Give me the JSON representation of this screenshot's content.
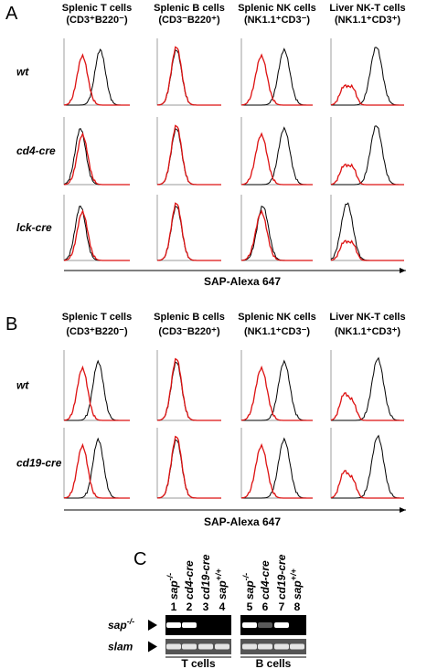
{
  "panels": [
    {
      "label": "A",
      "columns": [
        {
          "name": "Splenic T cells",
          "markers": "(CD3⁺B220⁻)"
        },
        {
          "name": "Splenic B cells",
          "markers": "(CD3⁻B220⁺)"
        },
        {
          "name": "Splenic NK cells",
          "markers": "(NK1.1⁺CD3⁻)"
        },
        {
          "name": "Liver NK-T cells",
          "markers": "(NK1.1⁺CD3⁺)"
        }
      ],
      "rows": [
        "wt",
        "cd4-cre",
        "lck-cre"
      ],
      "axis_label": "SAP-Alexa 647"
    },
    {
      "label": "B",
      "columns": [
        {
          "name": "Splenic T cells",
          "markers": "(CD3⁺B220⁻)"
        },
        {
          "name": "Splenic B cells",
          "markers": "(CD3⁻B220⁺)"
        },
        {
          "name": "Splenic NK cells",
          "markers": "(NK1.1⁺CD3⁻)"
        },
        {
          "name": "Liver NK-T cells",
          "markers": "(NK1.1⁺CD3⁺)"
        }
      ],
      "rows": [
        "wt",
        "cd19-cre"
      ],
      "axis_label": "SAP-Alexa 647"
    },
    {
      "label": "C",
      "lanes": [
        {
          "gene": "sap",
          "genotype": "-/-",
          "number": "1"
        },
        {
          "gene": "cd4-cre",
          "genotype": "",
          "number": "2"
        },
        {
          "gene": "cd19-cre",
          "genotype": "",
          "number": "3"
        },
        {
          "gene": "sap",
          "genotype": "+/+",
          "number": "4"
        },
        {
          "gene": "sap",
          "genotype": "-/-",
          "number": "5"
        },
        {
          "gene": "cd4-cre",
          "genotype": "",
          "number": "6"
        },
        {
          "gene": "cd19-cre",
          "genotype": "",
          "number": "7"
        },
        {
          "gene": "sap",
          "genotype": "+/+",
          "number": "8"
        }
      ],
      "bands": [
        {
          "gene": "sap",
          "genotype": "-/-"
        },
        {
          "gene": "slam"
        }
      ],
      "groups": [
        "T cells",
        "B cells"
      ]
    }
  ]
}
